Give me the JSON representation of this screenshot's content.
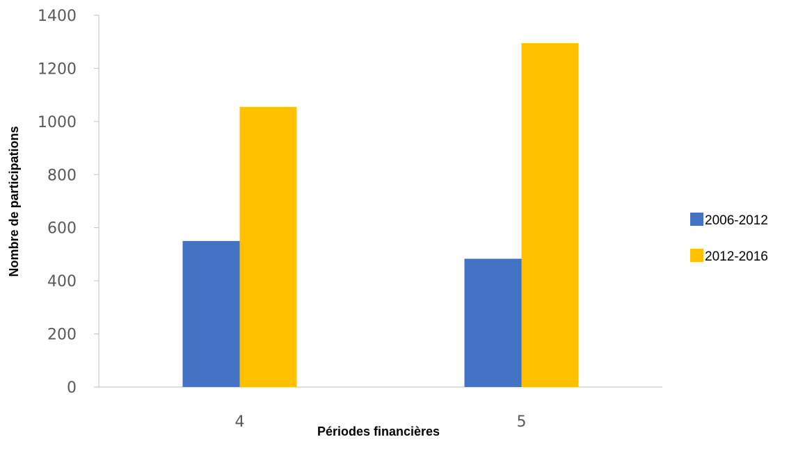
{
  "chart_data": {
    "type": "bar",
    "title": "",
    "xlabel": "Périodes financières",
    "ylabel": "Nombre de participations",
    "categories": [
      "4",
      "5"
    ],
    "series": [
      {
        "name": "2006-2012",
        "values": [
          550,
          483
        ],
        "color": "#4472C4"
      },
      {
        "name": "2012-2016",
        "values": [
          1055,
          1295
        ],
        "color": "#FFC000"
      }
    ],
    "ylim": [
      0,
      1400
    ],
    "yticks": [
      0,
      200,
      400,
      600,
      800,
      1000,
      1200,
      1400
    ],
    "grid": false,
    "legend_position": "right"
  }
}
